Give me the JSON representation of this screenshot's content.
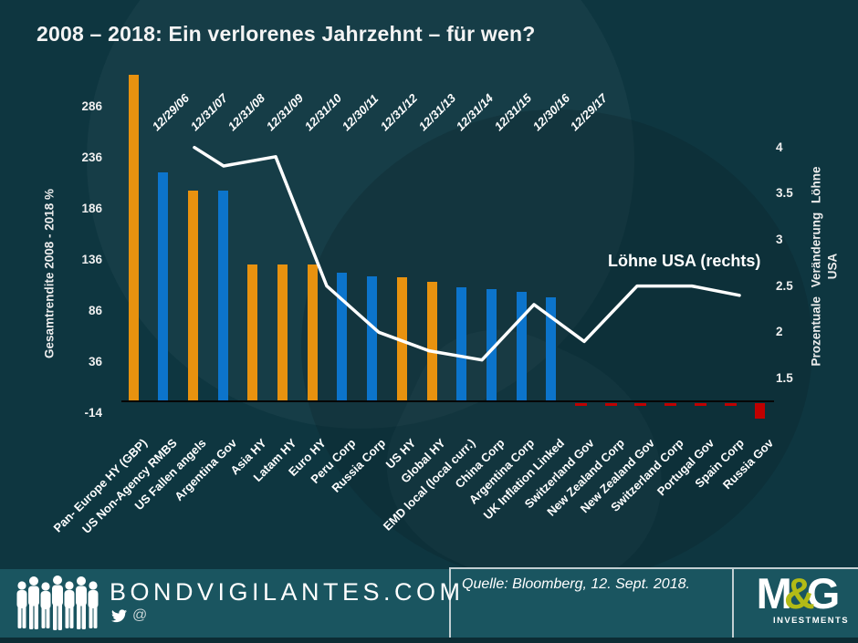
{
  "title": "2008 – 2018: Ein verlorenes Jahrzehnt – für wen?",
  "chart_data": {
    "type": "bar+line",
    "title": "2008 – 2018: Ein verlorenes Jahrzehnt – für wen?",
    "left_axis": {
      "label": "Gesamtrendite 2008 - 2018 %",
      "ticks": [
        "286",
        "236",
        "186",
        "136",
        "86",
        "36",
        "-14"
      ]
    },
    "right_axis": {
      "label_line1": "Prozentuale Veränderung Löhne",
      "label_line2": "USA",
      "ticks": [
        "4",
        "3.5",
        "3",
        "2.5",
        "2",
        "1.5"
      ]
    },
    "top_axis_dates": [
      "12/29/06",
      "12/31/07",
      "12/31/08",
      "12/31/09",
      "12/31/10",
      "12/30/11",
      "12/31/12",
      "12/31/13",
      "12/31/14",
      "12/31/15",
      "12/30/16",
      "12/29/17"
    ],
    "categories": [
      "Pan- Europe HY (GBP)",
      "US Non-Agency RMBS",
      "US Fallen angels",
      "Argentina Gov",
      "Asia HY",
      "Latam HY",
      "Euro HY",
      "Peru Corp",
      "Russia Corp",
      "US HY",
      "Global HY",
      "EMD local (local curr.)",
      "China Corp",
      "Argentina Corp",
      "UK Inflation Linked",
      "Switzerland Gov",
      "New Zealand Corp",
      "New Zealand Gov",
      "Switzerland Corp",
      "Portugal Gov",
      "Spain Corp",
      "Russia Gov"
    ],
    "bar_values": [
      320,
      224,
      206,
      206,
      134,
      134,
      134,
      126,
      122,
      121,
      117,
      112,
      110,
      107,
      102,
      -3,
      -3,
      -3,
      -3,
      -3,
      -3,
      -15
    ],
    "bar_colors": [
      "orange",
      "blue",
      "orange",
      "blue",
      "orange",
      "orange",
      "orange",
      "blue",
      "blue",
      "orange",
      "orange",
      "blue",
      "blue",
      "blue",
      "blue",
      "red",
      "red",
      "red",
      "red",
      "red",
      "red",
      "red"
    ],
    "line_series": {
      "name": "Löhne USA (rechts)",
      "values": [
        4.0,
        3.8,
        3.9,
        2.5,
        2.0,
        1.8,
        1.7,
        2.3,
        1.9,
        2.5,
        2.5,
        2.4
      ]
    },
    "annotation": "Löhne USA (rechts)",
    "colors": {
      "orange": "#e8920f",
      "blue": "#0c74cb",
      "red": "#c00000",
      "line": "#ffffff"
    }
  },
  "footer": {
    "site_name": "BONDVIGILANTES.COM",
    "at_symbol": "@",
    "source": "Quelle: Bloomberg, 12. Sept. 2018.",
    "brand": {
      "m": "M",
      "amp": "&",
      "g": "G",
      "sub": "INVESTMENTS"
    }
  }
}
